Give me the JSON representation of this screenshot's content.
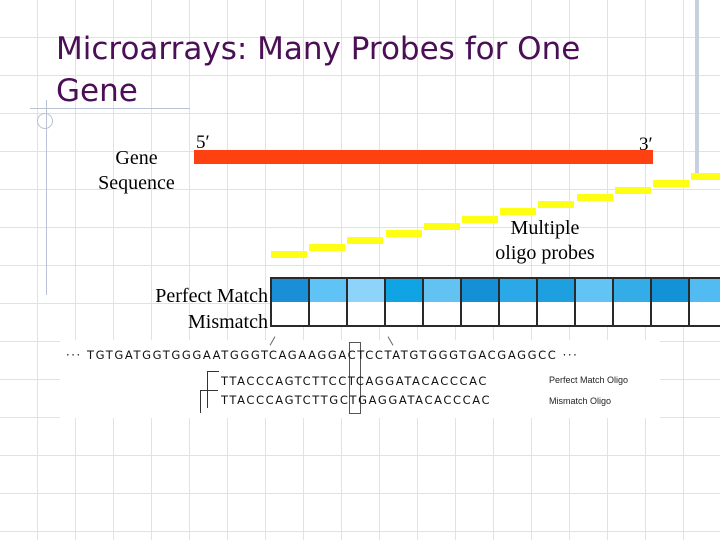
{
  "slide": {
    "title": "Microarrays: Many Probes for One Gene"
  },
  "diagram": {
    "gene_label_line1": "Gene",
    "gene_label_line2": "Sequence",
    "prime5": "5′",
    "prime3": "3′",
    "probes_label_line1": "Multiple",
    "probes_label_line2": "oligo probes",
    "pm_label": "Perfect Match",
    "mm_label": "Mismatch",
    "colors": {
      "gene_bar": "#ff4010",
      "probe": "#ffff14",
      "pm_cells": [
        "#1a8fd8",
        "#5fc4f5",
        "#8ed4fa",
        "#10a4e4",
        "#62c2f2",
        "#1490d6",
        "#2ba8e8",
        "#1ea0e0",
        "#62c4f5",
        "#34ace8",
        "#1492d8",
        "#52bcf2"
      ]
    },
    "probe_count": 12,
    "cell_count": 12
  },
  "sequence": {
    "gene_seq": "··· TGTGATGGTGGGAATGGGTCAGAAGGACTCCTATGTGGGTGACGAGGCC ···",
    "pm_oligo": "TTACCCAGTCTTCCTCAGGATACACCCAC",
    "mm_oligo": "TTACCCAGTCTTGCTGAGGATACACCCAC",
    "pm_oligo_label": "Perfect Match Oligo",
    "mm_oligo_label": "Mismatch Oligo"
  }
}
